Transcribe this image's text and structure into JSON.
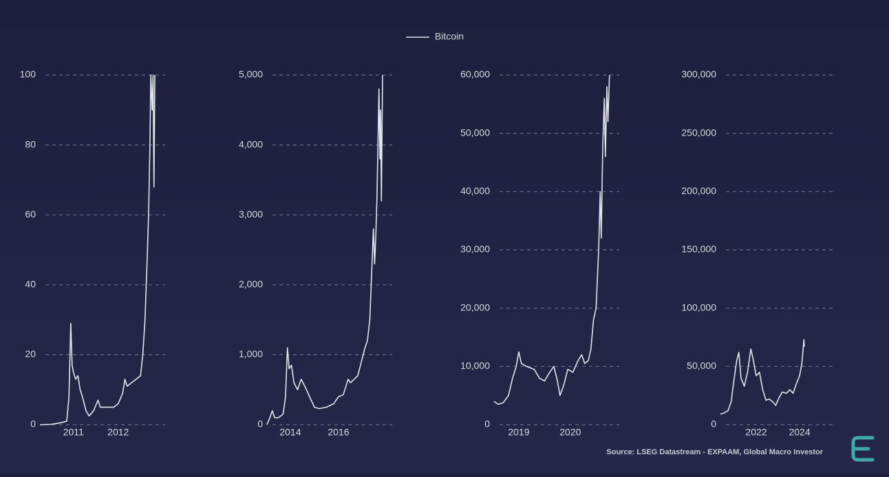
{
  "legend": {
    "label": "Bitcoin",
    "color": "#e4e4ec"
  },
  "source": "Source: LSEG Datastream - EXPAAM, Global Macro Investor",
  "chart_data": [
    {
      "type": "line",
      "color": "#e4e4ec",
      "grid": true,
      "xlim": [
        2010.25,
        2013.05
      ],
      "xticks": [
        2011,
        2012
      ],
      "ylim": [
        0,
        100
      ],
      "yticks": [
        0,
        20,
        40,
        60,
        80,
        100
      ],
      "x": [
        2010.25,
        2010.5,
        2010.7,
        2010.85,
        2010.9,
        2010.94,
        2010.97,
        2011.0,
        2011.05,
        2011.1,
        2011.15,
        2011.2,
        2011.28,
        2011.35,
        2011.45,
        2011.55,
        2011.6,
        2011.75,
        2011.9,
        2012.0,
        2012.1,
        2012.15,
        2012.2,
        2012.3,
        2012.4,
        2012.5,
        2012.55,
        2012.6,
        2012.65,
        2012.68,
        2012.71,
        2012.73,
        2012.76,
        2012.78,
        2012.8,
        2012.82
      ],
      "values": [
        0,
        0.1,
        0.5,
        1,
        8,
        29,
        17,
        15,
        13,
        14,
        10,
        8,
        4,
        2.5,
        4,
        7,
        5,
        5,
        5,
        6,
        9,
        13,
        11,
        12,
        13,
        14,
        20,
        30,
        48,
        60,
        80,
        100,
        90,
        100,
        68,
        100
      ]
    },
    {
      "type": "line",
      "color": "#e4e4ec",
      "grid": true,
      "xlim": [
        2013.03,
        2018.23
      ],
      "xticks": [
        2014,
        2016
      ],
      "ylim": [
        0,
        5000
      ],
      "yticks": [
        0,
        {
          "value": 1000,
          "label": "1,000"
        },
        {
          "value": 2000,
          "label": "2,000"
        },
        {
          "value": 3000,
          "label": "3,000"
        },
        {
          "value": 4000,
          "label": "4,000"
        },
        {
          "value": 5000,
          "label": "5,000"
        }
      ],
      "x": [
        2013.03,
        2013.15,
        2013.25,
        2013.35,
        2013.5,
        2013.7,
        2013.8,
        2013.88,
        2013.95,
        2014.05,
        2014.15,
        2014.3,
        2014.45,
        2014.6,
        2014.8,
        2015.0,
        2015.2,
        2015.5,
        2015.8,
        2016.0,
        2016.2,
        2016.4,
        2016.5,
        2016.8,
        2016.95,
        2017.1,
        2017.2,
        2017.3,
        2017.38,
        2017.45,
        2017.5,
        2017.55,
        2017.6,
        2017.65,
        2017.68,
        2017.72,
        2017.75,
        2017.78,
        2017.83
      ],
      "values": [
        0,
        100,
        200,
        100,
        100,
        150,
        400,
        1100,
        800,
        850,
        600,
        500,
        650,
        550,
        400,
        250,
        230,
        250,
        300,
        400,
        430,
        650,
        600,
        700,
        900,
        1100,
        1200,
        1500,
        2200,
        2800,
        2300,
        2700,
        3300,
        4200,
        4800,
        3800,
        4500,
        3200,
        5000
      ]
    },
    {
      "type": "line",
      "color": "#e4e4ec",
      "grid": true,
      "xlim": [
        2018.52,
        2020.95
      ],
      "xticks": [
        2019,
        2020
      ],
      "ylim": [
        0,
        60000
      ],
      "yticks": [
        0,
        {
          "value": 10000,
          "label": "10,000"
        },
        {
          "value": 20000,
          "label": "20,000"
        },
        {
          "value": 30000,
          "label": "30,000"
        },
        {
          "value": 40000,
          "label": "40,000"
        },
        {
          "value": 50000,
          "label": "50,000"
        },
        {
          "value": 60000,
          "label": "60,000"
        }
      ],
      "x": [
        2018.52,
        2018.6,
        2018.7,
        2018.8,
        2018.88,
        2018.95,
        2019.0,
        2019.05,
        2019.15,
        2019.3,
        2019.4,
        2019.5,
        2019.6,
        2019.68,
        2019.75,
        2019.8,
        2019.88,
        2019.95,
        2020.05,
        2020.15,
        2020.22,
        2020.28,
        2020.35,
        2020.4,
        2020.45,
        2020.5,
        2020.55,
        2020.58,
        2020.6,
        2020.63,
        2020.66,
        2020.68,
        2020.71,
        2020.73,
        2020.76
      ],
      "values": [
        4000,
        3500,
        3800,
        5000,
        8000,
        10000,
        12500,
        10500,
        10000,
        9500,
        8000,
        7500,
        9000,
        10000,
        7500,
        5000,
        7000,
        9500,
        9000,
        11000,
        12000,
        10500,
        11000,
        13000,
        18000,
        20000,
        30000,
        40000,
        32000,
        48000,
        56000,
        46000,
        58000,
        52000,
        60000
      ]
    },
    {
      "type": "line",
      "color": "#e4e4ec",
      "grid": true,
      "xlim": [
        2020.35,
        2025.68
      ],
      "xticks": [
        2022,
        2024
      ],
      "ylim": [
        0,
        300000
      ],
      "yticks": [
        0,
        {
          "value": 50000,
          "label": "50,000"
        },
        {
          "value": 100000,
          "label": "100,000"
        },
        {
          "value": 150000,
          "label": "150,000"
        },
        {
          "value": 200000,
          "label": "200,000"
        },
        {
          "value": 250000,
          "label": "250,000"
        },
        {
          "value": 300000,
          "label": "300,000"
        }
      ],
      "x": [
        2020.35,
        2020.5,
        2020.7,
        2020.85,
        2020.95,
        2021.1,
        2021.2,
        2021.3,
        2021.45,
        2021.6,
        2021.75,
        2021.85,
        2022.0,
        2022.15,
        2022.3,
        2022.45,
        2022.6,
        2022.8,
        2022.9,
        2023.05,
        2023.2,
        2023.4,
        2023.55,
        2023.7,
        2023.85,
        2024.0,
        2024.1,
        2024.15,
        2024.2,
        2024.22
      ],
      "values": [
        9000,
        10000,
        12000,
        20000,
        35000,
        55000,
        62000,
        40000,
        33000,
        45000,
        65000,
        57000,
        42000,
        45000,
        30000,
        21000,
        22000,
        19000,
        16500,
        23000,
        28000,
        27000,
        30000,
        27000,
        35000,
        42000,
        52000,
        62000,
        73000,
        67000
      ]
    }
  ]
}
